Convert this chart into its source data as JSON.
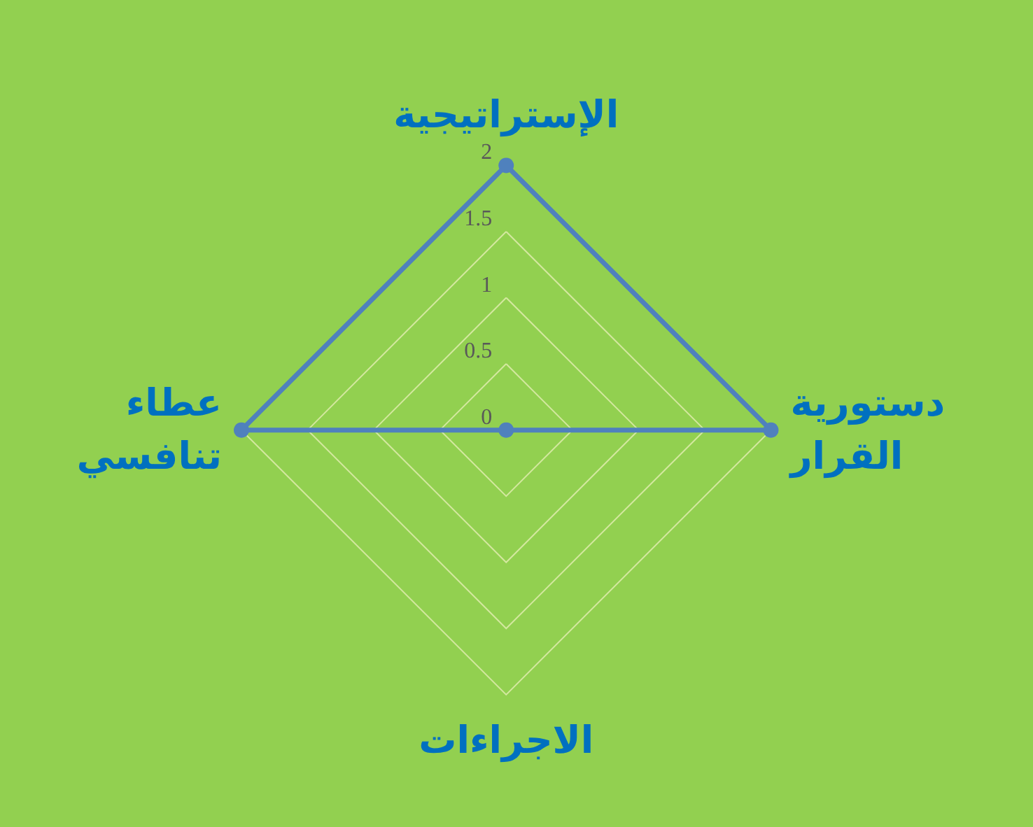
{
  "chart_data": {
    "type": "radar",
    "categories": [
      "الإستراتيجية",
      "دستورية القرار",
      "الاجراءات",
      "عطاء تنافسي"
    ],
    "series": [
      {
        "color": "#4f81bd",
        "values": [
          2,
          2,
          0,
          2
        ]
      }
    ],
    "ylim": [
      0,
      2
    ],
    "yticks": [
      0,
      0.5,
      1,
      1.5,
      2
    ],
    "grid": true,
    "marker": "circle",
    "line_style": "solid"
  }
}
